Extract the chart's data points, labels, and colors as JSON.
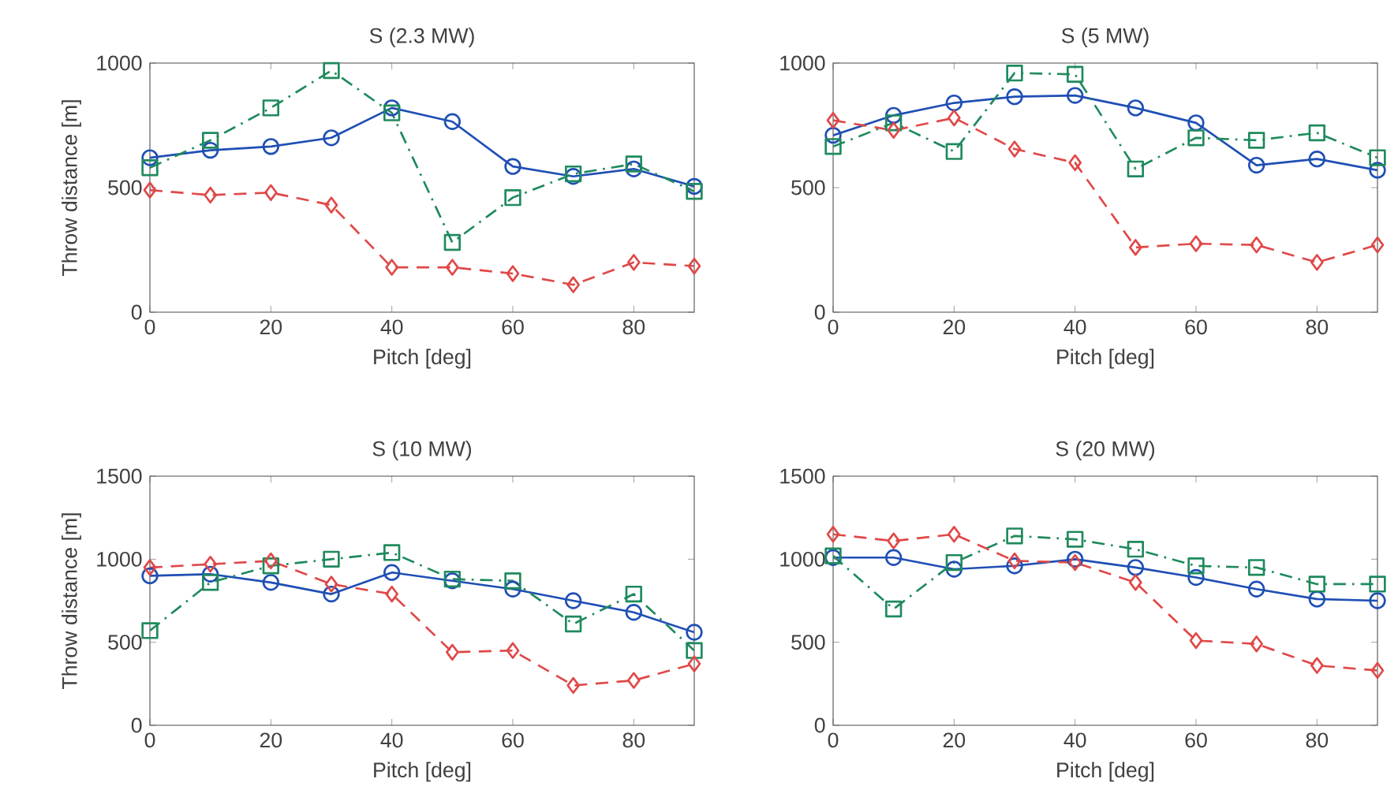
{
  "chart_data": [
    {
      "type": "line",
      "title": "S (2.3 MW)",
      "xlabel": "Pitch [deg]",
      "ylabel": "Throw distance [m]",
      "x": [
        0,
        10,
        20,
        30,
        40,
        50,
        60,
        70,
        80,
        90
      ],
      "xlim": [
        0,
        90
      ],
      "ylim": [
        0,
        1000
      ],
      "xticks": [
        0,
        20,
        40,
        60,
        80
      ],
      "yticks": [
        0,
        500,
        1000
      ],
      "series": [
        {
          "color": "#1f4fb4",
          "marker": "circle",
          "line_style": "solid",
          "values": [
            620,
            650,
            665,
            700,
            820,
            765,
            585,
            545,
            575,
            505
          ]
        },
        {
          "color": "#1f8a5c",
          "marker": "square",
          "line_style": "dashdot",
          "values": [
            580,
            690,
            820,
            970,
            800,
            280,
            460,
            555,
            595,
            485
          ]
        },
        {
          "color": "#e04848",
          "marker": "diamond",
          "line_style": "dashed",
          "values": [
            490,
            470,
            480,
            430,
            180,
            180,
            155,
            110,
            200,
            185
          ]
        }
      ]
    },
    {
      "type": "line",
      "title": "S (5 MW)",
      "xlabel": "Pitch [deg]",
      "x": [
        0,
        10,
        20,
        30,
        40,
        50,
        60,
        70,
        80,
        90
      ],
      "xlim": [
        0,
        90
      ],
      "ylim": [
        0,
        1000
      ],
      "xticks": [
        0,
        20,
        40,
        60,
        80
      ],
      "yticks": [
        0,
        500,
        1000
      ],
      "series": [
        {
          "color": "#1f4fb4",
          "marker": "circle",
          "line_style": "solid",
          "values": [
            710,
            790,
            840,
            865,
            870,
            820,
            760,
            590,
            615,
            570
          ]
        },
        {
          "color": "#1f8a5c",
          "marker": "square",
          "line_style": "dashdot",
          "values": [
            665,
            760,
            645,
            960,
            955,
            575,
            700,
            690,
            720,
            620
          ]
        },
        {
          "color": "#e04848",
          "marker": "diamond",
          "line_style": "dashed",
          "values": [
            770,
            730,
            780,
            655,
            600,
            260,
            275,
            270,
            200,
            270
          ]
        }
      ]
    },
    {
      "type": "line",
      "title": "S (10 MW)",
      "xlabel": "Pitch [deg]",
      "ylabel": "Throw distance [m]",
      "x": [
        0,
        10,
        20,
        30,
        40,
        50,
        60,
        70,
        80,
        90
      ],
      "xlim": [
        0,
        90
      ],
      "ylim": [
        0,
        1500
      ],
      "xticks": [
        0,
        20,
        40,
        60,
        80
      ],
      "yticks": [
        0,
        500,
        1000,
        1500
      ],
      "series": [
        {
          "color": "#1f4fb4",
          "marker": "circle",
          "line_style": "solid",
          "values": [
            900,
            910,
            860,
            790,
            920,
            870,
            820,
            750,
            680,
            560
          ]
        },
        {
          "color": "#1f8a5c",
          "marker": "square",
          "line_style": "dashdot",
          "values": [
            570,
            860,
            960,
            1000,
            1040,
            880,
            870,
            610,
            790,
            450
          ]
        },
        {
          "color": "#e04848",
          "marker": "diamond",
          "line_style": "dashed",
          "values": [
            950,
            970,
            990,
            850,
            790,
            440,
            450,
            240,
            270,
            370
          ]
        }
      ]
    },
    {
      "type": "line",
      "title": "S (20 MW)",
      "xlabel": "Pitch [deg]",
      "x": [
        0,
        10,
        20,
        30,
        40,
        50,
        60,
        70,
        80,
        90
      ],
      "xlim": [
        0,
        90
      ],
      "ylim": [
        0,
        1500
      ],
      "xticks": [
        0,
        20,
        40,
        60,
        80
      ],
      "yticks": [
        0,
        500,
        1000,
        1500
      ],
      "series": [
        {
          "color": "#1f4fb4",
          "marker": "circle",
          "line_style": "solid",
          "values": [
            1010,
            1010,
            940,
            960,
            1000,
            950,
            890,
            820,
            760,
            750
          ]
        },
        {
          "color": "#1f8a5c",
          "marker": "square",
          "line_style": "dashdot",
          "values": [
            1020,
            700,
            980,
            1140,
            1120,
            1060,
            960,
            950,
            850,
            850
          ]
        },
        {
          "color": "#e04848",
          "marker": "diamond",
          "line_style": "dashed",
          "values": [
            1150,
            1110,
            1150,
            990,
            980,
            860,
            510,
            490,
            360,
            330
          ]
        }
      ]
    }
  ]
}
